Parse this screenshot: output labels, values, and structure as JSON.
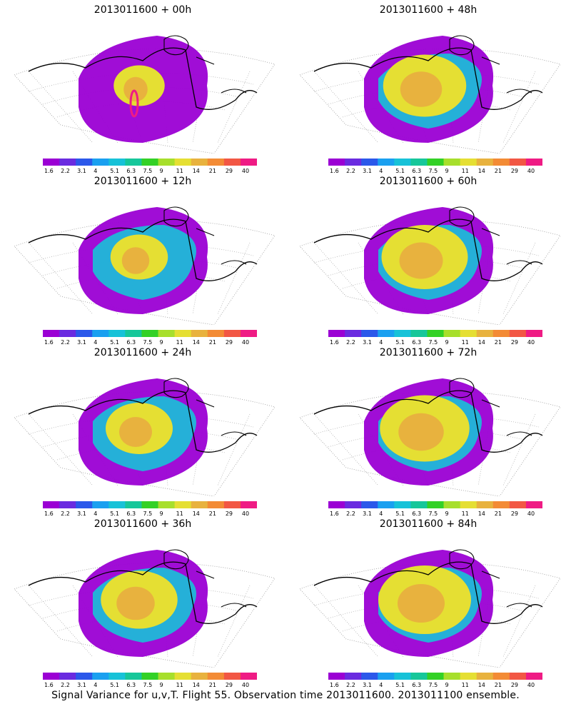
{
  "panels": [
    {
      "title": "2013011600 + 00h",
      "lead": "00h"
    },
    {
      "title": "2013011600 + 48h",
      "lead": "48h"
    },
    {
      "title": "2013011600 + 12h",
      "lead": "12h"
    },
    {
      "title": "2013011600 + 60h",
      "lead": "60h"
    },
    {
      "title": "2013011600 + 24h",
      "lead": "24h"
    },
    {
      "title": "2013011600 + 72h",
      "lead": "72h"
    },
    {
      "title": "2013011600 + 36h",
      "lead": "36h"
    },
    {
      "title": "2013011600 + 84h",
      "lead": "84h"
    }
  ],
  "colorbar": {
    "labels": [
      "1.6",
      "2.2",
      "3.1",
      "4",
      "5.1",
      "6.3",
      "7.5",
      "9",
      "11",
      "14",
      "21",
      "29",
      "40"
    ],
    "colors": [
      "#9b00d4",
      "#6a2be0",
      "#2b58ea",
      "#1aa0f0",
      "#17c2d8",
      "#16c79a",
      "#33d126",
      "#a7df2c",
      "#e5df33",
      "#e8b23e",
      "#f38b35",
      "#f25744",
      "#ef1b84"
    ]
  },
  "caption": "Signal Variance for u,v,T. Flight 55. Observation time 2013011600. 2013011100 ensemble."
}
